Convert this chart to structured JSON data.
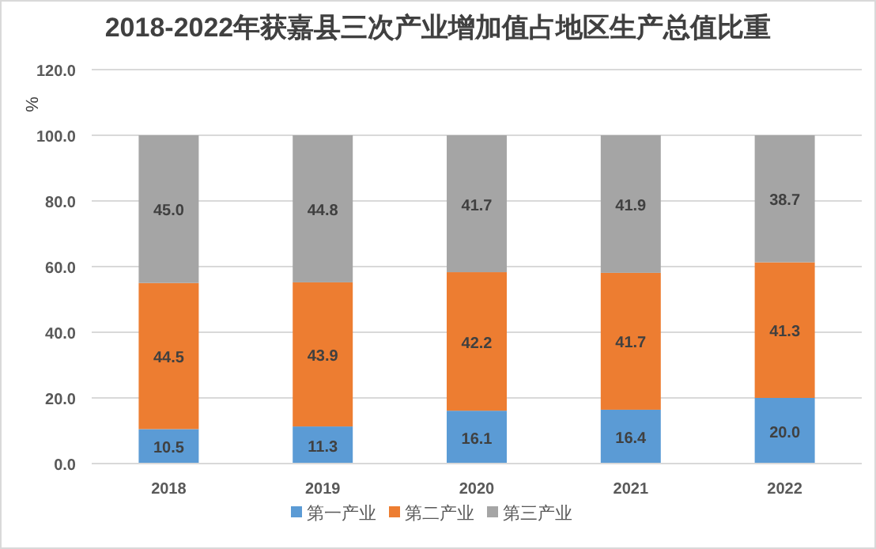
{
  "chart_data": {
    "type": "bar",
    "title": "2018-2022年获嘉县三次产业增加值占地区生产总值比重",
    "ylabel": "%",
    "categories": [
      "2018",
      "2019",
      "2020",
      "2021",
      "2022"
    ],
    "stacked": true,
    "series": [
      {
        "name": "第一产业",
        "color": "#5b9bd5",
        "values": [
          10.5,
          11.3,
          16.1,
          16.4,
          20.0
        ],
        "value_labels": [
          "10.5",
          "11.3",
          "16.1",
          "16.4",
          "20.0"
        ]
      },
      {
        "name": "第二产业",
        "color": "#ed7d31",
        "values": [
          44.5,
          43.9,
          42.2,
          41.7,
          41.3
        ],
        "value_labels": [
          "44.5",
          "43.9",
          "42.2",
          "41.7",
          "41.3"
        ]
      },
      {
        "name": "第三产业",
        "color": "#a5a5a5",
        "values": [
          45.0,
          44.8,
          41.7,
          41.9,
          38.7
        ],
        "value_labels": [
          "45.0",
          "44.8",
          "41.7",
          "41.9",
          "38.7"
        ]
      }
    ],
    "ylim": [
      0,
      120
    ],
    "yticks": [
      {
        "value": 0,
        "label": "0.0"
      },
      {
        "value": 20,
        "label": "20.0"
      },
      {
        "value": 40,
        "label": "40.0"
      },
      {
        "value": 60,
        "label": "60.0"
      },
      {
        "value": 80,
        "label": "80.0"
      },
      {
        "value": 100,
        "label": "100.0"
      },
      {
        "value": 120,
        "label": "120.0"
      }
    ],
    "grid": "y",
    "legend": "bottom"
  }
}
